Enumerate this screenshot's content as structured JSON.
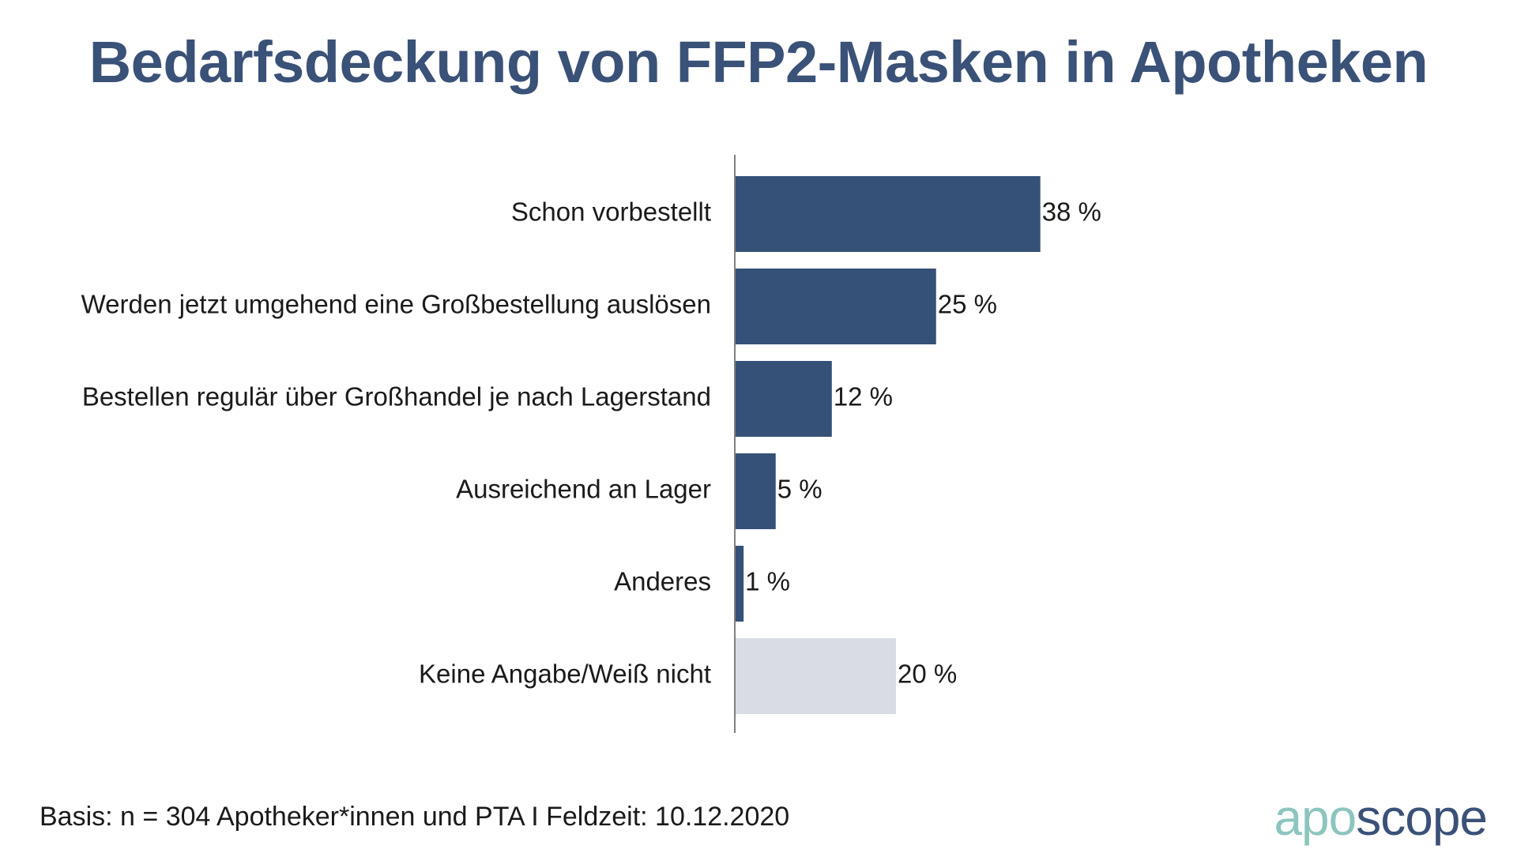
{
  "chart_data": {
    "type": "bar",
    "orientation": "horizontal",
    "title": "Bedarfsdeckung von FFP2-Masken in Apotheken",
    "categories": [
      "Schon vorbestellt",
      "Werden jetzt umgehend eine Großbestellung auslösen",
      "Bestellen regulär über Großhandel je nach Lagerstand",
      "Ausreichend an Lager",
      "Anderes",
      "Keine Angabe/Weiß nicht"
    ],
    "values": [
      38,
      25,
      12,
      5,
      1,
      20
    ],
    "value_labels": [
      "38 %",
      "25 %",
      "12 %",
      "5 %",
      "1 %",
      "20 %"
    ],
    "bar_colors": [
      "#365177",
      "#365177",
      "#365177",
      "#365177",
      "#365177",
      "#d9dce4"
    ],
    "unit": "%",
    "xlim": [
      0,
      100
    ],
    "grid": false,
    "legend": "none"
  },
  "footer": {
    "basis": "Basis: n = 304 Apotheker*innen und PTA I Feldzeit: 10.12.2020"
  },
  "logo": {
    "part1": "apo",
    "part2": "scope"
  }
}
